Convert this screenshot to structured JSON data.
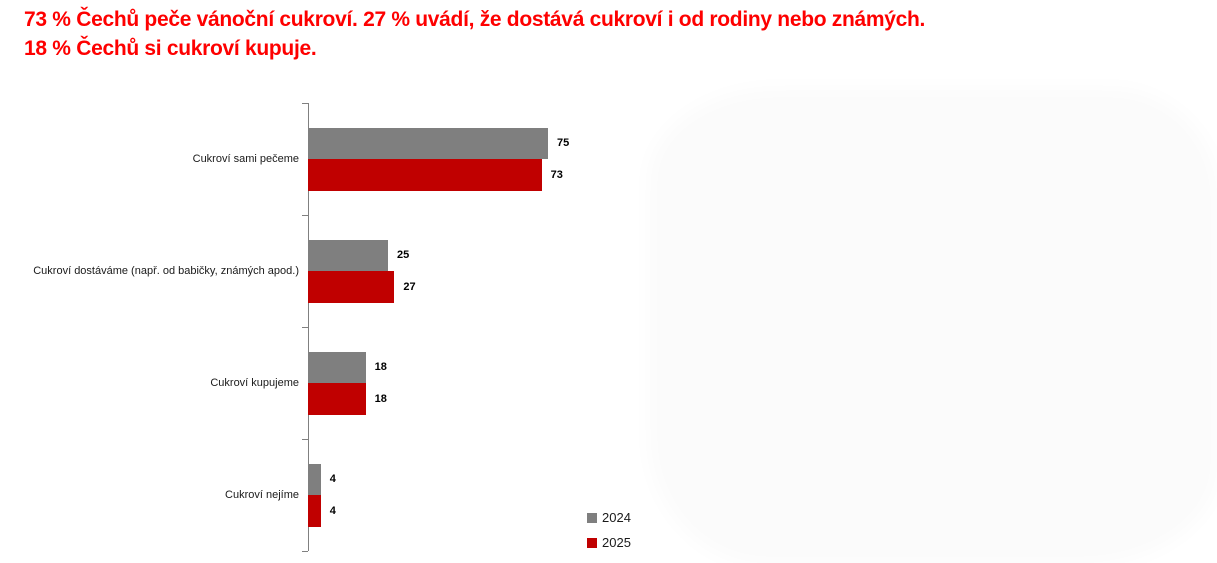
{
  "title": {
    "line1": "73 % Čechů peče vánoční cukroví. 27 % uvádí, že dostává cukroví i od rodiny nebo známých.",
    "line2": "18 % Čechů si cukroví kupuje.",
    "color": "#fe0000"
  },
  "chart_data": {
    "type": "bar",
    "orientation": "horizontal",
    "title": "",
    "xlabel": "",
    "ylabel": "",
    "xlim": [
      0,
      100
    ],
    "grid": false,
    "legend_position": "bottom-center",
    "categories": [
      "Cukroví sami pečeme",
      "Cukroví dostáváme (např. od babičky, známých apod.)",
      "Cukroví kupujeme",
      "Cukroví nejíme"
    ],
    "series": [
      {
        "name": "2024",
        "color": "#7f7f7f",
        "values": [
          75,
          25,
          18,
          4
        ]
      },
      {
        "name": "2025",
        "color": "#c00000",
        "values": [
          73,
          27,
          18,
          4
        ]
      }
    ]
  }
}
